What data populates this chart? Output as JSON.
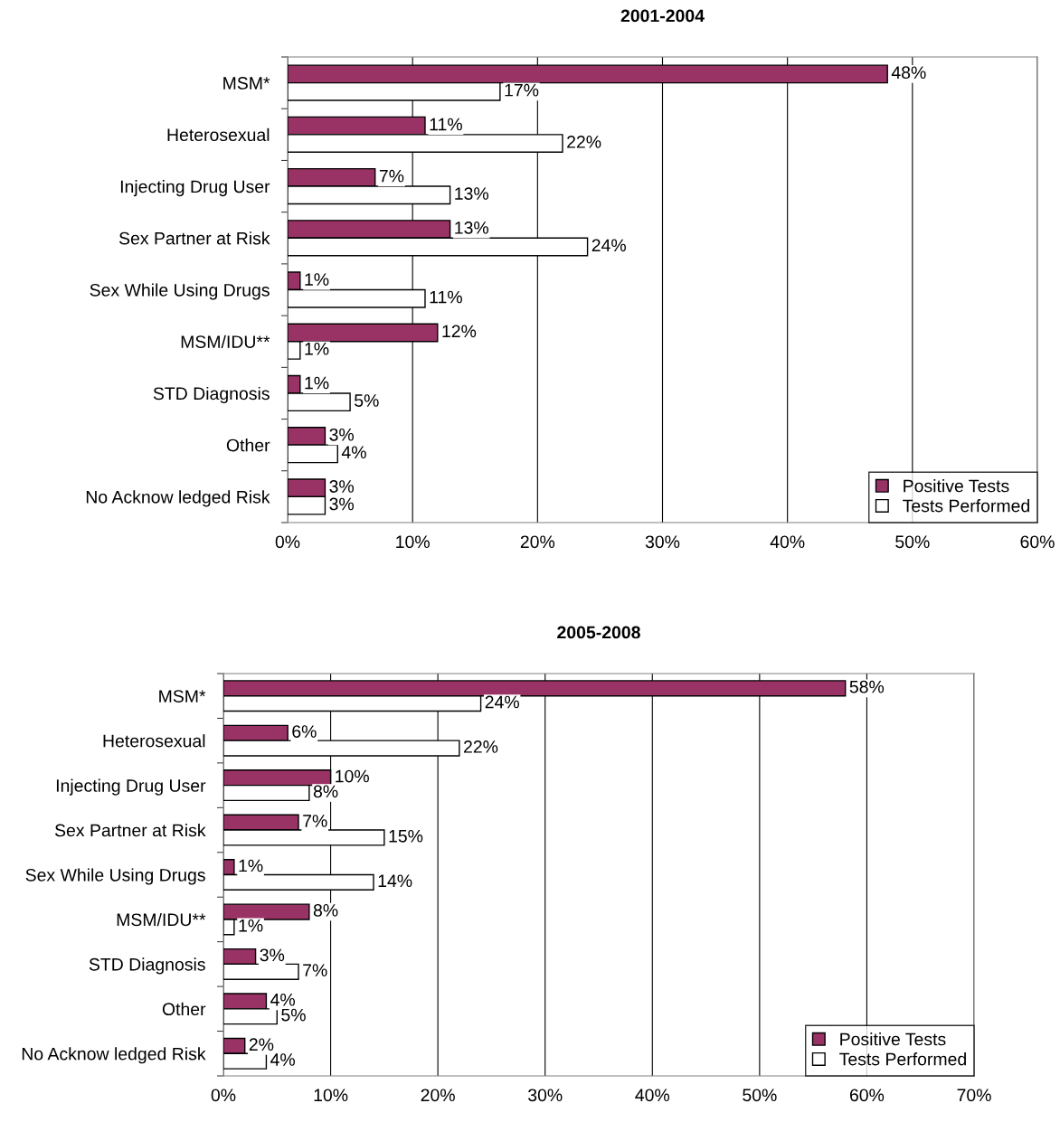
{
  "chart_data": [
    {
      "type": "bar",
      "title": "2001-2004",
      "orientation": "horizontal",
      "categories": [
        "MSM*",
        "Heterosexual",
        "Injecting Drug User",
        "Sex Partner at Risk",
        "Sex While Using Drugs",
        "MSM/IDU**",
        "STD Diagnosis",
        "Other",
        "No Acknow ledged Risk"
      ],
      "series": [
        {
          "name": "Positive Tests",
          "color": "#993366",
          "values": [
            48,
            11,
            7,
            13,
            1,
            12,
            1,
            3,
            3
          ],
          "value_labels": [
            "48%",
            "11%",
            "7%",
            "13%",
            "1%",
            "12%",
            "1%",
            "3%",
            "3%"
          ]
        },
        {
          "name": "Tests Performed",
          "color": "#ffffff",
          "values": [
            17,
            22,
            13,
            24,
            11,
            1,
            5,
            4,
            3
          ],
          "value_labels": [
            "17%",
            "22%",
            "13%",
            "24%",
            "11%",
            "1%",
            "5%",
            "4%",
            "3%"
          ]
        }
      ],
      "xlim": [
        0,
        60
      ],
      "xticks": [
        {
          "value": 0,
          "label": "0%"
        },
        {
          "value": 10,
          "label": "10%"
        },
        {
          "value": 20,
          "label": "20%"
        },
        {
          "value": 30,
          "label": "30%"
        },
        {
          "value": 40,
          "label": "40%"
        },
        {
          "value": 50,
          "label": "50%"
        },
        {
          "value": 60,
          "label": "60%"
        }
      ],
      "grid": "x",
      "legend": "bottom right"
    },
    {
      "type": "bar",
      "title": "2005-2008",
      "orientation": "horizontal",
      "categories": [
        "MSM*",
        "Heterosexual",
        "Injecting Drug User",
        "Sex Partner at Risk",
        "Sex While Using Drugs",
        "MSM/IDU**",
        "STD Diagnosis",
        "Other",
        "No Acknow ledged Risk"
      ],
      "series": [
        {
          "name": "Positive Tests",
          "color": "#993366",
          "values": [
            58,
            6,
            10,
            7,
            1,
            8,
            3,
            4,
            2
          ],
          "value_labels": [
            "58%",
            "6%",
            "10%",
            "7%",
            "1%",
            "8%",
            "3%",
            "4%",
            "2%"
          ]
        },
        {
          "name": "Tests Performed",
          "color": "#ffffff",
          "values": [
            24,
            22,
            8,
            15,
            14,
            1,
            7,
            5,
            4
          ],
          "value_labels": [
            "24%",
            "22%",
            "8%",
            "15%",
            "14%",
            "1%",
            "7%",
            "5%",
            "4%"
          ]
        }
      ],
      "xlim": [
        0,
        70
      ],
      "xticks": [
        {
          "value": 0,
          "label": "0%"
        },
        {
          "value": 10,
          "label": "10%"
        },
        {
          "value": 20,
          "label": "20%"
        },
        {
          "value": 30,
          "label": "30%"
        },
        {
          "value": 40,
          "label": "40%"
        },
        {
          "value": 50,
          "label": "50%"
        },
        {
          "value": 60,
          "label": "60%"
        },
        {
          "value": 70,
          "label": "70%"
        }
      ],
      "grid": "x",
      "legend": "bottom right"
    }
  ]
}
